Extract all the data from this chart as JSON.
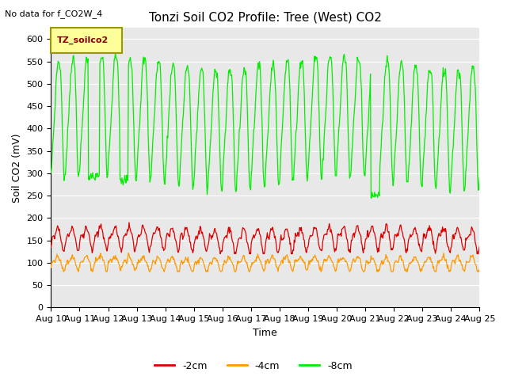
{
  "title": "Tonzi Soil CO2 Profile: Tree (West) CO2",
  "no_data_label": "No data for f_CO2W_4",
  "xlabel": "Time",
  "ylabel": "Soil CO2 (mV)",
  "ylim": [
    0,
    625
  ],
  "yticks": [
    0,
    50,
    100,
    150,
    200,
    250,
    300,
    350,
    400,
    450,
    500,
    550,
    600
  ],
  "xtick_labels": [
    "Aug 10",
    "Aug 11",
    "Aug 12",
    "Aug 13",
    "Aug 14",
    "Aug 15",
    "Aug 16",
    "Aug 17",
    "Aug 18",
    "Aug 19",
    "Aug 20",
    "Aug 21",
    "Aug 22",
    "Aug 23",
    "Aug 24",
    "Aug 25"
  ],
  "legend_box_label": "TZ_soilco2",
  "legend_entries": [
    "-2cm",
    "-4cm",
    "-8cm"
  ],
  "line_colors": [
    "#dd0000",
    "#ff9900",
    "#00ee00"
  ],
  "bg_color": "#e8e8e8",
  "title_fontsize": 11,
  "axis_label_fontsize": 9,
  "tick_fontsize": 8,
  "n_days": 15,
  "green_base": 430,
  "green_amp": 130,
  "green_cycles_per_day": 2.0,
  "red_base": 155,
  "red_amp": 22,
  "red_cycles_per_day": 1.5,
  "orange_base": 100,
  "orange_amp": 13,
  "orange_cycles_per_day": 1.5
}
